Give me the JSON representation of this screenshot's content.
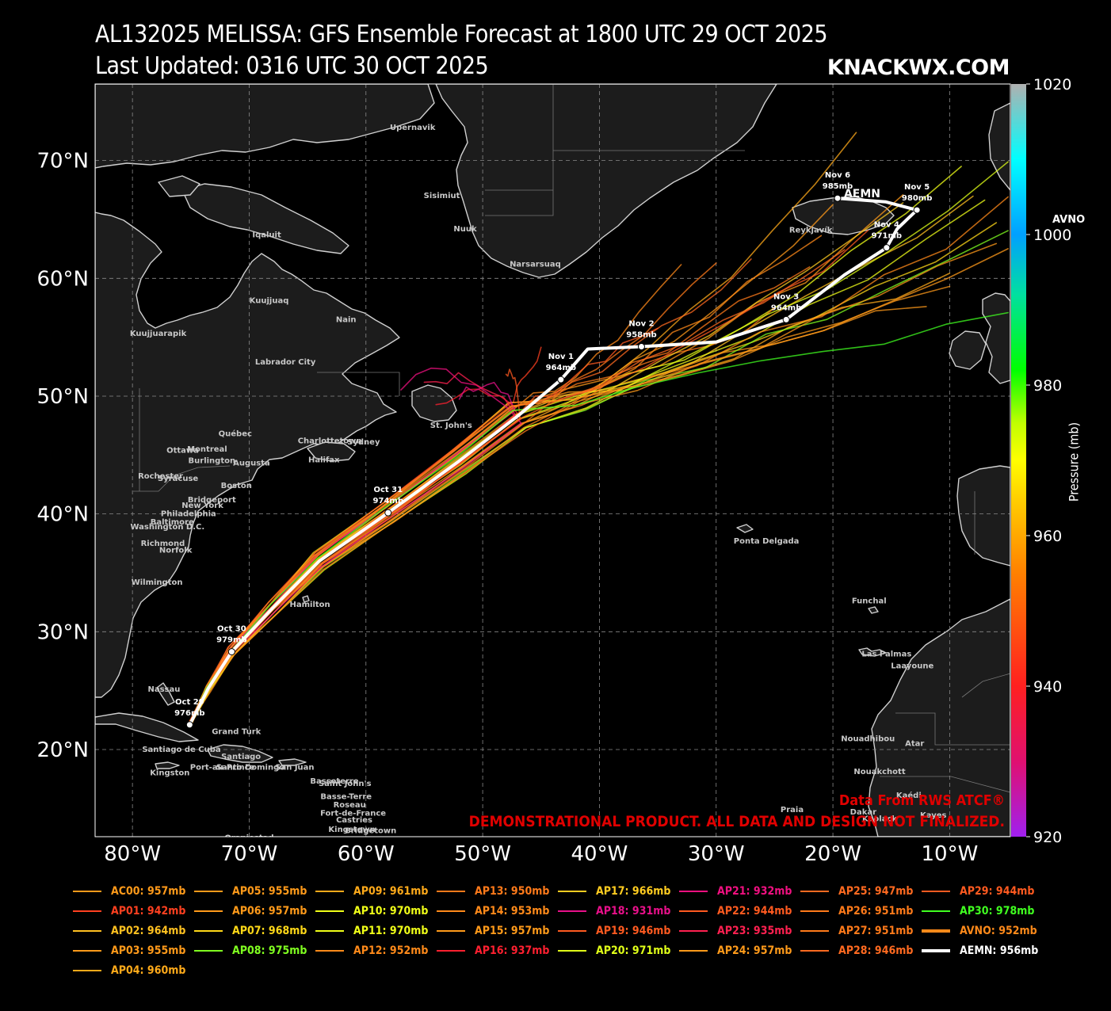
{
  "header": {
    "title": "AL132025 MELISSA: GFS Ensemble Forecast at 1800 UTC 29 OCT 2025",
    "updated": "Last Updated: 0316 UTC 30 OCT 2025",
    "brand": "KNACKWX.COM"
  },
  "credits": {
    "source": "Data From RWS ATCF®",
    "disclaimer": "DEMONSTRATIONAL PRODUCT. ALL DATA AND DESIGN NOT FINALIZED."
  },
  "axes": {
    "lon_labels": [
      "80°W",
      "70°W",
      "60°W",
      "50°W",
      "40°W",
      "30°W",
      "20°W",
      "10°W"
    ],
    "lat_labels": [
      "70°N",
      "60°N",
      "50°N",
      "40°N",
      "30°N",
      "20°N"
    ],
    "lon_range": [
      -83.2,
      -4.8
    ],
    "lat_range": [
      12.6,
      76.5
    ],
    "grid": true
  },
  "colorbar": {
    "label": "Pressure (mb)",
    "ticks": [
      "1020",
      "1000",
      "980",
      "960",
      "940",
      "920"
    ],
    "range": [
      920,
      1020
    ],
    "stops": [
      "#a020f0",
      "#e01070",
      "#ff2020",
      "#ff8000",
      "#ffd000",
      "#ffff00",
      "#c0ff00",
      "#00ff00",
      "#00e0a0",
      "#00a0ff",
      "#00ffff",
      "#b0b0b0"
    ]
  },
  "avno_tag": "AVNO",
  "labels": {
    "places": [
      {
        "name": "Upernavik",
        "lon": -56,
        "lat": 72.8
      },
      {
        "name": "Sisimiut",
        "lon": -53.5,
        "lat": 67
      },
      {
        "name": "Nuuk",
        "lon": -51.5,
        "lat": 64.2
      },
      {
        "name": "Narsarsuaq",
        "lon": -45.5,
        "lat": 61.2
      },
      {
        "name": "Reykjavík",
        "lon": -21.9,
        "lat": 64.1
      },
      {
        "name": "Iqaluit",
        "lon": -68.5,
        "lat": 63.7
      },
      {
        "name": "Kuujjuaq",
        "lon": -68.3,
        "lat": 58.1
      },
      {
        "name": "Kuujjuarapik",
        "lon": -77.8,
        "lat": 55.3
      },
      {
        "name": "Nain",
        "lon": -61.7,
        "lat": 56.5
      },
      {
        "name": "Labrador City",
        "lon": -66.9,
        "lat": 52.9
      },
      {
        "name": "Québec",
        "lon": -71.2,
        "lat": 46.8
      },
      {
        "name": "Charlottetown",
        "lon": -63.1,
        "lat": 46.2
      },
      {
        "name": "Sydney",
        "lon": -60.2,
        "lat": 46.1
      },
      {
        "name": "St. John's",
        "lon": -52.7,
        "lat": 47.5
      },
      {
        "name": "Montreal",
        "lon": -73.6,
        "lat": 45.5
      },
      {
        "name": "Ottawa",
        "lon": -75.7,
        "lat": 45.4
      },
      {
        "name": "Burlington",
        "lon": -73.2,
        "lat": 44.5
      },
      {
        "name": "Augusta",
        "lon": -69.8,
        "lat": 44.3
      },
      {
        "name": "Halifax",
        "lon": -63.6,
        "lat": 44.6
      },
      {
        "name": "Rochester",
        "lon": -77.6,
        "lat": 43.2
      },
      {
        "name": "Syracuse",
        "lon": -76.1,
        "lat": 43
      },
      {
        "name": "Boston",
        "lon": -71.1,
        "lat": 42.4
      },
      {
        "name": "Bridgeport",
        "lon": -73.2,
        "lat": 41.2
      },
      {
        "name": "New York",
        "lon": -74,
        "lat": 40.7
      },
      {
        "name": "Philadelphia",
        "lon": -75.2,
        "lat": 40
      },
      {
        "name": "Baltimore",
        "lon": -76.6,
        "lat": 39.3
      },
      {
        "name": "Washington D.C.",
        "lon": -77,
        "lat": 38.9
      },
      {
        "name": "Richmond",
        "lon": -77.4,
        "lat": 37.5
      },
      {
        "name": "Norfolk",
        "lon": -76.3,
        "lat": 36.9
      },
      {
        "name": "Wilmington",
        "lon": -77.9,
        "lat": 34.2
      },
      {
        "name": "Hamilton",
        "lon": -64.8,
        "lat": 32.3
      },
      {
        "name": "Ponta Delgada",
        "lon": -25.7,
        "lat": 37.7
      },
      {
        "name": "Funchal",
        "lon": -16.9,
        "lat": 32.6
      },
      {
        "name": "Las Palmas",
        "lon": -15.4,
        "lat": 28.1
      },
      {
        "name": "Laayoune",
        "lon": -13.2,
        "lat": 27.1
      },
      {
        "name": "Nassau",
        "lon": -77.3,
        "lat": 25.1
      },
      {
        "name": "Grand Turk",
        "lon": -71.1,
        "lat": 21.5
      },
      {
        "name": "Santiago de Cuba",
        "lon": -75.8,
        "lat": 20
      },
      {
        "name": "Santiago",
        "lon": -70.7,
        "lat": 19.4
      },
      {
        "name": "Port-au-Prince",
        "lon": -72.3,
        "lat": 18.5
      },
      {
        "name": "Santo Domingo",
        "lon": -69.9,
        "lat": 18.5
      },
      {
        "name": "San Juan",
        "lon": -66.1,
        "lat": 18.5
      },
      {
        "name": "Kingston",
        "lon": -76.8,
        "lat": 18
      },
      {
        "name": "Basseterre",
        "lon": -62.7,
        "lat": 17.3
      },
      {
        "name": "Saint John's",
        "lon": -61.8,
        "lat": 17.1
      },
      {
        "name": "Basse-Terre",
        "lon": -61.7,
        "lat": 16
      },
      {
        "name": "Roseau",
        "lon": -61.4,
        "lat": 15.3
      },
      {
        "name": "Fort-de-France",
        "lon": -61.1,
        "lat": 14.6
      },
      {
        "name": "Castries",
        "lon": -61,
        "lat": 14
      },
      {
        "name": "Kingstown",
        "lon": -61.2,
        "lat": 13.2
      },
      {
        "name": "Bridgetown",
        "lon": -59.6,
        "lat": 13.1
      },
      {
        "name": "Oranjestad",
        "lon": -70,
        "lat": 12.5
      },
      {
        "name": "Nouadhibou",
        "lon": -17,
        "lat": 20.9
      },
      {
        "name": "Atar",
        "lon": -13,
        "lat": 20.5
      },
      {
        "name": "Nouakchott",
        "lon": -16,
        "lat": 18.1
      },
      {
        "name": "Kaédi",
        "lon": -13.5,
        "lat": 16.1
      },
      {
        "name": "Praia",
        "lon": -23.5,
        "lat": 14.9
      },
      {
        "name": "Dakar",
        "lon": -17.4,
        "lat": 14.7
      },
      {
        "name": "Kaolack",
        "lon": -16,
        "lat": 14.1
      },
      {
        "name": "Kayes",
        "lon": -11.4,
        "lat": 14.4
      }
    ]
  },
  "chart_data": {
    "type": "map-track",
    "mean_track_name": "AEMN",
    "mean_track": [
      {
        "lon": -75.1,
        "lat": 22.1,
        "day": "Oct 29",
        "mb": "976mb"
      },
      {
        "lon": -73.5,
        "lat": 25.2
      },
      {
        "lon": -71.5,
        "lat": 28.3,
        "day": "Oct 30",
        "mb": "979mb"
      },
      {
        "lon": -68,
        "lat": 32
      },
      {
        "lon": -64,
        "lat": 36
      },
      {
        "lon": -58.1,
        "lat": 40.1,
        "day": "Oct 31",
        "mb": "974mb"
      },
      {
        "lon": -52,
        "lat": 44.5
      },
      {
        "lon": -47,
        "lat": 48.3
      },
      {
        "lon": -43.3,
        "lat": 51.4,
        "day": "Nov 1",
        "mb": "964mb"
      },
      {
        "lon": -41,
        "lat": 54
      },
      {
        "lon": -36.4,
        "lat": 54.2,
        "day": "Nov 2",
        "mb": "958mb"
      },
      {
        "lon": -30,
        "lat": 54.6
      },
      {
        "lon": -24,
        "lat": 56.5,
        "day": "Nov 3",
        "mb": "964mb"
      },
      {
        "lon": -19,
        "lat": 60.3
      },
      {
        "lon": -15.4,
        "lat": 62.6,
        "day": "Nov 4",
        "mb": "971mb"
      },
      {
        "lon": -14.5,
        "lat": 64.2
      },
      {
        "lon": -12.8,
        "lat": 65.8,
        "day": "Nov 5",
        "mb": "980mb"
      },
      {
        "lon": -15.5,
        "lat": 66.5
      },
      {
        "lon": -19.6,
        "lat": 66.8,
        "day": "Nov 6",
        "mb": "985mb"
      }
    ],
    "members": [
      {
        "name": "AC00",
        "mb": 957,
        "color": "#ff9a1a",
        "end": [
          -10,
          59.5
        ]
      },
      {
        "name": "AP01",
        "mb": 942,
        "color": "#ff4020",
        "end": [
          -45,
          54
        ]
      },
      {
        "name": "AP02",
        "mb": 964,
        "color": "#ffc020",
        "end": [
          -8,
          66.5
        ]
      },
      {
        "name": "AP03",
        "mb": 955,
        "color": "#ff9a1a",
        "end": [
          -12,
          58
        ]
      },
      {
        "name": "AP04",
        "mb": 960,
        "color": "#ffaa1a",
        "end": [
          -10,
          60.5
        ]
      },
      {
        "name": "AP05",
        "mb": 955,
        "color": "#ff9a1a",
        "end": [
          -20,
          66
        ]
      },
      {
        "name": "AP06",
        "mb": 957,
        "color": "#ff9a1a",
        "end": [
          -14,
          66.5
        ]
      },
      {
        "name": "AP07",
        "mb": 968,
        "color": "#ffd818",
        "end": [
          -6,
          65
        ]
      },
      {
        "name": "AP08",
        "mb": 975,
        "color": "#80ff20",
        "end": [
          -5,
          64
        ]
      },
      {
        "name": "AP09",
        "mb": 961,
        "color": "#ffaa1a",
        "end": [
          -18,
          72
        ]
      },
      {
        "name": "AP10",
        "mb": 970,
        "color": "#f0ff18",
        "end": [
          -9,
          70
        ]
      },
      {
        "name": "AP11",
        "mb": 970,
        "color": "#f0ff18",
        "end": [
          -7,
          66.8
        ]
      },
      {
        "name": "AP12",
        "mb": 952,
        "color": "#ff8a1a",
        "end": [
          -33,
          61
        ]
      },
      {
        "name": "AP13",
        "mb": 950,
        "color": "#ff7a1a",
        "end": [
          -25,
          57
        ]
      },
      {
        "name": "AP14",
        "mb": 953,
        "color": "#ff8a1a",
        "end": [
          -21,
          64
        ]
      },
      {
        "name": "AP15",
        "mb": 957,
        "color": "#ff9a1a",
        "end": [
          -6,
          63
        ]
      },
      {
        "name": "AP16",
        "mb": 937,
        "color": "#ff2030",
        "end": [
          -54,
          49
        ]
      },
      {
        "name": "AP17",
        "mb": 966,
        "color": "#ffcc20",
        "end": [
          -14,
          67
        ]
      },
      {
        "name": "AP18",
        "mb": 931,
        "color": "#e8108a",
        "end": [
          -52,
          50
        ]
      },
      {
        "name": "AP19",
        "mb": 946,
        "color": "#ff5a20",
        "end": [
          -17,
          64
        ]
      },
      {
        "name": "AP20",
        "mb": 971,
        "color": "#e0ff18",
        "end": [
          -5,
          69.5
        ]
      },
      {
        "name": "AP21",
        "mb": 932,
        "color": "#f01080",
        "end": [
          -57,
          51
        ]
      },
      {
        "name": "AP22",
        "mb": 944,
        "color": "#ff5a20",
        "end": [
          -48,
          52
        ]
      },
      {
        "name": "AP23",
        "mb": 935,
        "color": "#ff2050",
        "end": [
          -55,
          51
        ]
      },
      {
        "name": "AP24",
        "mb": 957,
        "color": "#ff9a1a",
        "end": [
          -5,
          62
        ]
      },
      {
        "name": "AP25",
        "mb": 947,
        "color": "#ff6a20",
        "end": [
          -27,
          62
        ]
      },
      {
        "name": "AP26",
        "mb": 951,
        "color": "#ff7a1a",
        "end": [
          -22,
          61
        ]
      },
      {
        "name": "AP27",
        "mb": 951,
        "color": "#ff7a1a",
        "end": [
          -30,
          61
        ]
      },
      {
        "name": "AP28",
        "mb": 946,
        "color": "#ff6a20",
        "end": [
          -19,
          63
        ]
      },
      {
        "name": "AP29",
        "mb": 944,
        "color": "#ff5a20",
        "end": [
          -35,
          56
        ]
      },
      {
        "name": "AP30",
        "mb": 978,
        "color": "#40ff20",
        "end": [
          -5,
          57
        ]
      },
      {
        "name": "AVNO",
        "mb": 952,
        "color": "#ff8a1a",
        "end": [
          -5,
          66.5
        ]
      },
      {
        "name": "AEMN",
        "mb": 956,
        "color": "#ffffff",
        "end": [
          -19.6,
          66.8
        ]
      }
    ],
    "legend": [
      "AC00: 957mb",
      "AP01: 942mb",
      "AP02: 964mb",
      "AP03: 955mb",
      "AP04: 960mb",
      "AP05: 955mb",
      "AP06: 957mb",
      "AP07: 968mb",
      "AP08: 975mb",
      "AP09: 961mb",
      "AP10: 970mb",
      "AP11: 970mb",
      "AP12: 952mb",
      "AP13: 950mb",
      "AP14: 953mb",
      "AP15: 957mb",
      "AP16: 937mb",
      "AP17: 966mb",
      "AP18: 931mb",
      "AP19: 946mb",
      "AP20: 971mb",
      "AP21: 932mb",
      "AP22: 944mb",
      "AP23: 935mb",
      "AP24: 957mb",
      "AP25: 947mb",
      "AP26: 951mb",
      "AP27: 951mb",
      "AP28: 946mb",
      "AP29: 944mb",
      "AP30: 978mb",
      "AVNO: 952mb",
      "AEMN: 956mb"
    ]
  }
}
